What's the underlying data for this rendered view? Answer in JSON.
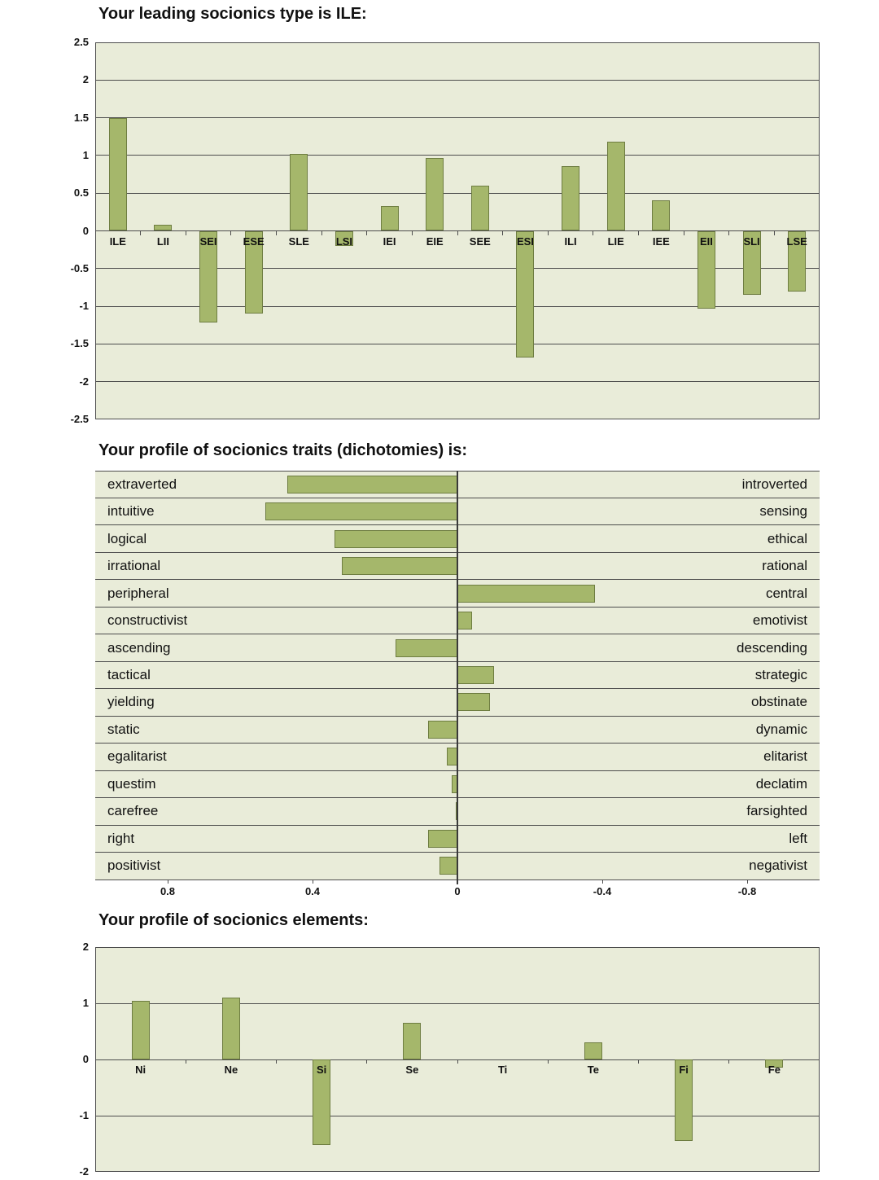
{
  "colors": {
    "bar_fill": "#a5b76b",
    "bar_border": "#6e7d41",
    "plot_bg": "#e9ecd9",
    "grid": "#4d4d4d",
    "zero_line": "#3a3a3a",
    "text": "#111111"
  },
  "chart_data": [
    {
      "type": "bar",
      "title": "Your leading socionics type is ILE:",
      "categories": [
        "ILE",
        "LII",
        "SEI",
        "ESE",
        "SLE",
        "LSI",
        "IEI",
        "EIE",
        "SEE",
        "ESI",
        "ILI",
        "LIE",
        "IEE",
        "EII",
        "SLI",
        "LSE"
      ],
      "values": [
        1.5,
        0.08,
        -1.22,
        -1.1,
        1.02,
        -0.2,
        0.33,
        0.97,
        0.6,
        -1.68,
        0.86,
        1.18,
        0.4,
        -1.03,
        -0.85,
        -0.8
      ],
      "ylim": [
        -2.5,
        2.5
      ],
      "yticks": [
        2.5,
        2,
        1.5,
        1,
        0.5,
        0,
        -0.5,
        -1,
        -1.5,
        -2,
        -2.5
      ],
      "grid": "horizontal",
      "legend": "none"
    },
    {
      "type": "bar-horizontal",
      "title": "Your profile of socionics traits (dichotomies) is:",
      "positive_direction": "left",
      "xlim": [
        1,
        -1
      ],
      "xticks": [
        0.8,
        0.4,
        0,
        -0.4,
        -0.8
      ],
      "rows": [
        {
          "left": "extraverted",
          "right": "introverted",
          "value": 0.47
        },
        {
          "left": "intuitive",
          "right": "sensing",
          "value": 0.53
        },
        {
          "left": "logical",
          "right": "ethical",
          "value": 0.34
        },
        {
          "left": "irrational",
          "right": "rational",
          "value": 0.32
        },
        {
          "left": "peripheral",
          "right": "central",
          "value": -0.38
        },
        {
          "left": "constructivist",
          "right": "emotivist",
          "value": -0.04
        },
        {
          "left": "ascending",
          "right": "descending",
          "value": 0.17
        },
        {
          "left": "tactical",
          "right": "strategic",
          "value": -0.1
        },
        {
          "left": "yielding",
          "right": "obstinate",
          "value": -0.09
        },
        {
          "left": "static",
          "right": "dynamic",
          "value": 0.08
        },
        {
          "left": "egalitarist",
          "right": "elitarist",
          "value": 0.03
        },
        {
          "left": "questim",
          "right": "declatim",
          "value": 0.015
        },
        {
          "left": "carefree",
          "right": "farsighted",
          "value": 0.005
        },
        {
          "left": "right",
          "right": "left",
          "value": 0.08
        },
        {
          "left": "positivist",
          "right": "negativist",
          "value": 0.05
        }
      ],
      "legend": "none"
    },
    {
      "type": "bar",
      "title": "Your profile of socionics elements:",
      "categories": [
        "Ni",
        "Ne",
        "Si",
        "Se",
        "Ti",
        "Te",
        "Fi",
        "Fe"
      ],
      "values": [
        1.05,
        1.1,
        -1.52,
        0.65,
        0,
        0.3,
        -1.45,
        -0.15
      ],
      "ylim": [
        -2,
        2
      ],
      "yticks": [
        2,
        1,
        0,
        -1,
        -2
      ],
      "grid": "horizontal",
      "legend": "none"
    }
  ]
}
